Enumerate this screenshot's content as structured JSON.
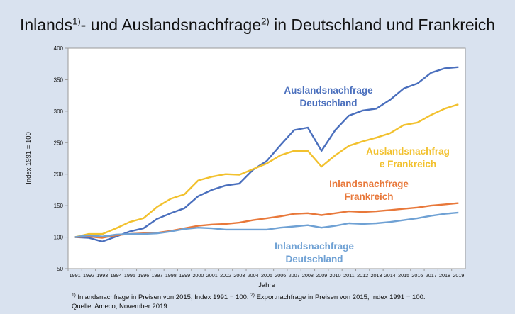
{
  "title": {
    "part1": "Inlands",
    "sup1": "1)",
    "part2": "- und Auslandsnachfrage",
    "sup2": "2)",
    "part3": " in Deutschland und Frankreich"
  },
  "footnote": {
    "sup1": "1)",
    "text1": " Inlandsnachfrage in Preisen von 2015, Index 1991 = 100. ",
    "sup2": "2)",
    "text2": " Exportnachfrage in Preisen von 2015, Index 1991 = 100.",
    "source": "Quelle: Ameco, November 2019."
  },
  "chart_data": {
    "type": "line",
    "xlabel": "Jahre",
    "ylabel": "Index 1991 = 100",
    "ylim": [
      50,
      400
    ],
    "yticks": [
      50,
      100,
      150,
      200,
      250,
      300,
      350,
      400
    ],
    "grid": false,
    "categories": [
      "1991",
      "1992",
      "1993",
      "1994",
      "1995",
      "1996",
      "1997",
      "1998",
      "1999",
      "2000",
      "2001",
      "2002",
      "2003",
      "2004",
      "2005",
      "2006",
      "2007",
      "2008",
      "2009",
      "2010",
      "2011",
      "2012",
      "2013",
      "2014",
      "2015",
      "2016",
      "2017",
      "2018",
      "2019"
    ],
    "series": [
      {
        "name": "Auslandsnachfrage Deutschland",
        "label_lines": [
          "Auslandsnachfrage",
          "Deutschland"
        ],
        "color": "#4a6fbd",
        "values": [
          100,
          99,
          93,
          101,
          109,
          114,
          129,
          138,
          146,
          165,
          175,
          182,
          185,
          207,
          221,
          246,
          270,
          274,
          237,
          270,
          293,
          301,
          304,
          318,
          336,
          344,
          361,
          368,
          370
        ]
      },
      {
        "name": "Auslandsnachfrage Frankreich",
        "label_lines": [
          "Auslandsnachfrag",
          "e Frankreich"
        ],
        "color": "#f2c12e",
        "values": [
          100,
          105,
          105,
          114,
          124,
          130,
          148,
          161,
          168,
          190,
          196,
          200,
          199,
          208,
          217,
          230,
          237,
          237,
          212,
          230,
          245,
          252,
          258,
          265,
          278,
          282,
          294,
          304,
          311
        ]
      },
      {
        "name": "Inlandsnachfrage Frankreich",
        "label_lines": [
          "Inlandsnachfrage",
          "Frankreich"
        ],
        "color": "#e8783a",
        "values": [
          100,
          101,
          99,
          103,
          105,
          106,
          107,
          110,
          114,
          118,
          120,
          121,
          123,
          127,
          130,
          133,
          137,
          138,
          135,
          138,
          141,
          140,
          141,
          143,
          145,
          147,
          150,
          152,
          154
        ]
      },
      {
        "name": "Inlandsnachfrage Deutschland",
        "label_lines": [
          "Inlandsnachfrage",
          "Deutschland"
        ],
        "color": "#6fa1d4",
        "values": [
          100,
          103,
          101,
          104,
          105,
          105,
          106,
          109,
          113,
          115,
          114,
          112,
          112,
          112,
          112,
          115,
          117,
          119,
          115,
          118,
          122,
          121,
          122,
          124,
          127,
          130,
          134,
          137,
          139
        ]
      }
    ]
  }
}
